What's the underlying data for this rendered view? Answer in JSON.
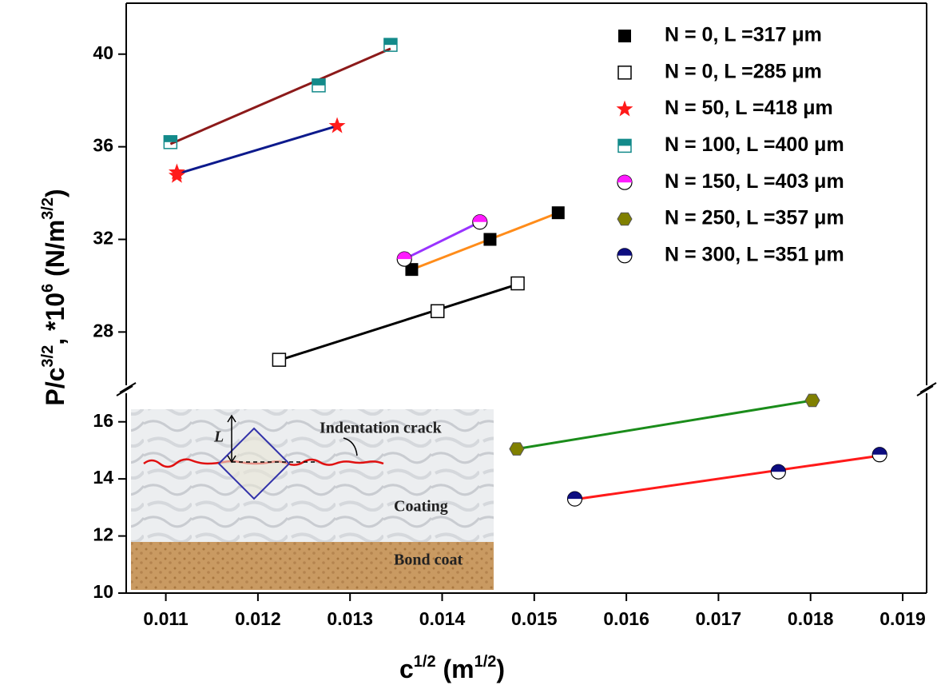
{
  "chart_data": {
    "type": "scatter",
    "xlabel": [
      "c",
      "1/2",
      " (m",
      "1/2",
      ")"
    ],
    "ylabel": [
      "P/c",
      "3/2",
      ", *10",
      "6",
      " (N/m",
      "3/2",
      ")"
    ],
    "xlim": [
      0.01057,
      0.01926
    ],
    "xticks": [
      0.011,
      0.012,
      0.013,
      0.014,
      0.015,
      0.016,
      0.017,
      0.018,
      0.019
    ],
    "y_segments": [
      {
        "ylim": [
          10,
          17
        ],
        "yticks": [
          10,
          12,
          14,
          16
        ]
      },
      {
        "ylim": [
          25.7,
          42.2
        ],
        "yticks": [
          28,
          32,
          36,
          40
        ]
      }
    ],
    "legend": "upper right",
    "series": [
      {
        "name": "N = 0,    L =317 μm",
        "marker": "square",
        "color": "#000000",
        "fit_color": "#ff8c1a",
        "x": [
          0.01367,
          0.01452,
          0.01526
        ],
        "values": [
          30.7,
          32.0,
          33.15
        ]
      },
      {
        "name": "N = 0,    L =285 μm",
        "marker": "open-square",
        "color": "#000000",
        "fit_color": "#000000",
        "x": [
          0.01223,
          0.01395,
          0.01482
        ],
        "values": [
          26.8,
          28.9,
          30.1
        ]
      },
      {
        "name": "N = 50,   L =418 μm",
        "marker": "star",
        "color": "#ff1a1a",
        "fit_color": "#0d1a8c",
        "x": [
          0.01112,
          0.01112,
          0.01286
        ],
        "values": [
          34.9,
          34.75,
          36.9
        ]
      },
      {
        "name": "N = 100, L =400 μm",
        "marker": "half-square",
        "color": "#138a8a",
        "fit_color": "#8c1a1a",
        "x": [
          0.01105,
          0.01266,
          0.01344
        ],
        "values": [
          36.2,
          38.65,
          40.4
        ]
      },
      {
        "name": "N = 150, L =403 μm",
        "marker": "half-circle",
        "color": "#ff1aff",
        "fit_color": "#9933ff",
        "x": [
          0.01359,
          0.01441
        ],
        "values": [
          31.15,
          32.75
        ]
      },
      {
        "name": "N = 250, L =357 μm",
        "marker": "hexagon",
        "color": "#808000",
        "fit_color": "#1a8c1a",
        "x": [
          0.01481,
          0.01802
        ],
        "values": [
          15.05,
          16.75
        ]
      },
      {
        "name": "N = 300, L =351 μm",
        "marker": "half-circle",
        "color": "#0d0d80",
        "fit_color": "#ff1a1a",
        "x": [
          0.01544,
          0.01765,
          0.01875
        ],
        "values": [
          13.3,
          14.25,
          14.85
        ]
      }
    ]
  },
  "inset": {
    "crack_label": "Indentation crack",
    "length_label": "L",
    "coating_label": "Coating",
    "bond_label": "Bond coat"
  }
}
